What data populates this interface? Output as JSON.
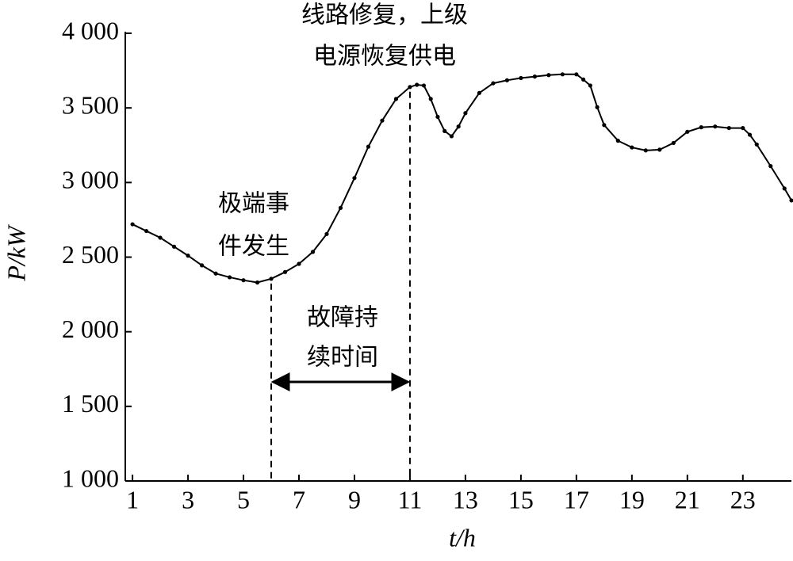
{
  "chart_data": {
    "type": "line",
    "x_label": "t/h",
    "y_label": "P/kW",
    "annotations": [
      "线路修复，上级",
      "电源恢复供电",
      "极端事",
      "件发生",
      "故障持",
      "续时间"
    ],
    "vlines": [
      6,
      11
    ],
    "x": [
      1,
      1.5,
      2,
      2.5,
      3,
      3.5,
      4,
      4.5,
      5,
      5.5,
      6,
      6.5,
      7,
      7.5,
      8,
      8.5,
      9,
      9.5,
      10,
      10.5,
      11,
      11.25,
      11.5,
      11.75,
      12,
      12.25,
      12.5,
      12.75,
      13,
      13.5,
      14,
      14.5,
      15,
      15.5,
      16,
      16.5,
      17,
      17.25,
      17.5,
      17.75,
      18,
      18.5,
      19,
      19.5,
      20,
      20.5,
      21,
      21.5,
      22,
      22.5,
      23,
      23.25,
      23.5,
      24,
      24.5,
      24.75
    ],
    "series": [
      {
        "name": "P",
        "color": "#000000",
        "values": [
          2720,
          2675,
          2630,
          2570,
          2510,
          2445,
          2390,
          2365,
          2345,
          2330,
          2355,
          2400,
          2455,
          2535,
          2655,
          2830,
          3030,
          3240,
          3415,
          3560,
          3640,
          3655,
          3650,
          3560,
          3440,
          3345,
          3310,
          3375,
          3465,
          3600,
          3665,
          3685,
          3700,
          3710,
          3720,
          3725,
          3725,
          3690,
          3650,
          3505,
          3385,
          3280,
          3235,
          3215,
          3220,
          3265,
          3340,
          3370,
          3375,
          3365,
          3365,
          3320,
          3255,
          3110,
          2960,
          2880
        ]
      }
    ],
    "xlim": [
      0.74,
      24.75
    ],
    "ylim": [
      1000,
      4000
    ],
    "xticks": [
      1,
      3,
      5,
      7,
      9,
      11,
      13,
      15,
      17,
      19,
      21,
      23
    ],
    "yticks": [
      {
        "value": 1000,
        "label": "1 000"
      },
      {
        "value": 1500,
        "label": "1 500"
      },
      {
        "value": 2000,
        "label": "2 000"
      },
      {
        "value": 2500,
        "label": "2 500"
      },
      {
        "value": 3000,
        "label": "3 000"
      },
      {
        "value": 3500,
        "label": "3 500"
      },
      {
        "value": 4000,
        "label": "4 000"
      }
    ],
    "grid": false,
    "markers": true
  }
}
